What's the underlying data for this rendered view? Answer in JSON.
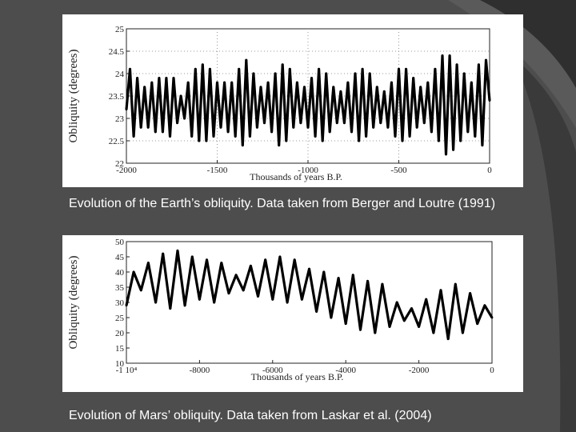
{
  "slide": {
    "background": "#4d4d4d",
    "accent": "#2a2a2a",
    "caption_color": "#ffffff"
  },
  "captions": {
    "earth": "Evolution of the Earth’s obliquity.  Data taken from Berger and Loutre (1991)",
    "mars": "Evolution of Mars’ obliquity.  Data taken from Laskar et al. (2004)"
  },
  "chart_data": [
    {
      "type": "line",
      "title": "",
      "xlabel": "Thousands of years B.P.",
      "ylabel": "Obliquity (degrees)",
      "xlim": [
        -2000,
        0
      ],
      "ylim": [
        22,
        25
      ],
      "x_ticks": [
        -2000,
        -1500,
        -1000,
        -500,
        0
      ],
      "y_ticks": [
        22,
        22.5,
        23,
        23.5,
        24,
        24.5,
        25
      ],
      "x_tick_labels": [
        "-2000",
        "-1500",
        "-1000",
        "-500",
        "0"
      ],
      "y_tick_labels": [
        "22",
        "22.5",
        "23",
        "23.5",
        "24",
        "24.5",
        "25"
      ],
      "grid": true,
      "series": [
        {
          "line_color": "#000000",
          "x": [
            -2000,
            -1980,
            -1960,
            -1940,
            -1920,
            -1900,
            -1880,
            -1860,
            -1840,
            -1820,
            -1800,
            -1780,
            -1760,
            -1740,
            -1720,
            -1700,
            -1680,
            -1660,
            -1640,
            -1620,
            -1600,
            -1580,
            -1560,
            -1540,
            -1520,
            -1500,
            -1480,
            -1460,
            -1440,
            -1420,
            -1400,
            -1380,
            -1360,
            -1340,
            -1320,
            -1300,
            -1280,
            -1260,
            -1240,
            -1220,
            -1200,
            -1180,
            -1160,
            -1140,
            -1120,
            -1100,
            -1080,
            -1060,
            -1040,
            -1020,
            -1000,
            -980,
            -960,
            -940,
            -920,
            -900,
            -880,
            -860,
            -840,
            -820,
            -800,
            -780,
            -760,
            -740,
            -720,
            -700,
            -680,
            -660,
            -640,
            -620,
            -600,
            -580,
            -560,
            -540,
            -520,
            -500,
            -480,
            -460,
            -440,
            -420,
            -400,
            -380,
            -360,
            -340,
            -320,
            -300,
            -280,
            -260,
            -240,
            -220,
            -200,
            -180,
            -160,
            -140,
            -120,
            -100,
            -80,
            -60,
            -40,
            -20,
            0
          ],
          "y": [
            23.2,
            24.1,
            22.6,
            23.9,
            22.8,
            23.7,
            22.8,
            23.8,
            22.7,
            23.9,
            22.7,
            23.9,
            22.6,
            23.9,
            22.9,
            23.5,
            23.0,
            23.8,
            22.6,
            24.1,
            22.5,
            24.2,
            22.5,
            24.1,
            22.6,
            23.8,
            22.8,
            23.8,
            22.7,
            23.8,
            22.6,
            24.1,
            22.4,
            24.3,
            22.6,
            24.0,
            22.8,
            23.7,
            22.9,
            23.8,
            22.7,
            24.0,
            22.4,
            24.2,
            22.5,
            24.1,
            22.8,
            23.8,
            22.9,
            23.7,
            22.8,
            23.9,
            22.6,
            24.1,
            22.5,
            24.0,
            22.7,
            23.7,
            22.9,
            23.6,
            22.9,
            23.8,
            22.7,
            24.0,
            22.5,
            24.1,
            22.6,
            24.0,
            22.8,
            23.7,
            22.9,
            23.6,
            22.8,
            23.8,
            22.6,
            24.1,
            22.5,
            24.1,
            22.6,
            23.9,
            22.8,
            23.7,
            22.9,
            23.8,
            22.7,
            24.1,
            22.5,
            24.4,
            22.2,
            24.4,
            22.3,
            24.2,
            22.5,
            24.0,
            22.7,
            23.8,
            22.6,
            24.2,
            22.4,
            24.3,
            23.4
          ]
        }
      ]
    },
    {
      "type": "line",
      "title": "",
      "xlabel": "Thousands of years B.P.",
      "ylabel": "Obliquity (degrees)",
      "xlim": [
        -10000,
        0
      ],
      "ylim": [
        10,
        50
      ],
      "x_ticks": [
        -10000,
        -8000,
        -6000,
        -4000,
        -2000,
        0
      ],
      "y_ticks": [
        10,
        15,
        20,
        25,
        30,
        35,
        40,
        45,
        50
      ],
      "x_tick_labels": [
        "-1 10⁴",
        "-8000",
        "-6000",
        "-4000",
        "-2000",
        "0"
      ],
      "y_tick_labels": [
        "10",
        "15",
        "20",
        "25",
        "30",
        "35",
        "40",
        "45",
        "50"
      ],
      "grid": false,
      "series": [
        {
          "line_color": "#000000",
          "x": [
            -10000,
            -9800,
            -9600,
            -9400,
            -9200,
            -9000,
            -8800,
            -8600,
            -8400,
            -8200,
            -8000,
            -7800,
            -7600,
            -7400,
            -7200,
            -7000,
            -6800,
            -6600,
            -6400,
            -6200,
            -6000,
            -5800,
            -5600,
            -5400,
            -5200,
            -5000,
            -4800,
            -4600,
            -4400,
            -4200,
            -4000,
            -3800,
            -3600,
            -3400,
            -3200,
            -3000,
            -2800,
            -2600,
            -2400,
            -2200,
            -2000,
            -1800,
            -1600,
            -1400,
            -1200,
            -1000,
            -800,
            -600,
            -400,
            -200,
            0
          ],
          "y": [
            29,
            40,
            34,
            43,
            30,
            46,
            28,
            47,
            29,
            45,
            31,
            44,
            30,
            43,
            33,
            39,
            34,
            42,
            32,
            44,
            31,
            45,
            30,
            44,
            31,
            41,
            27,
            40,
            25,
            38,
            23,
            39,
            21,
            37,
            20,
            36,
            22,
            30,
            24,
            28,
            22,
            31,
            20,
            34,
            18,
            36,
            20,
            33,
            23,
            29,
            25
          ]
        }
      ]
    }
  ]
}
